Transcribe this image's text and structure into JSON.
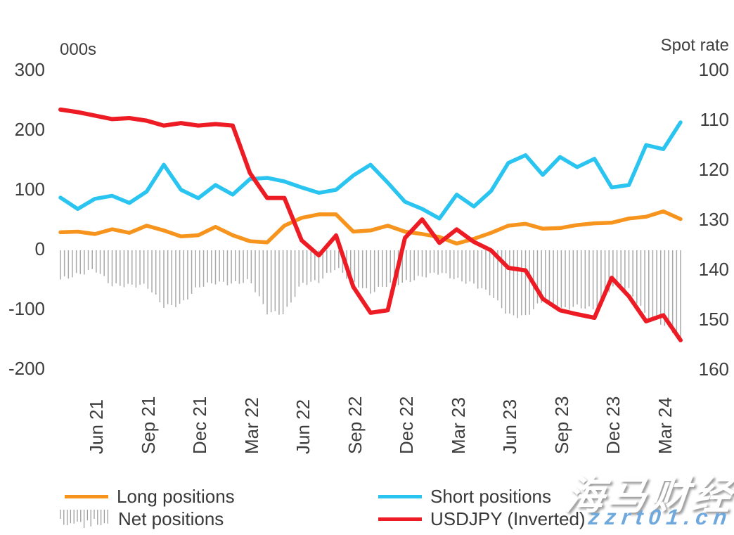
{
  "axes": {
    "left_unit_label": "000s",
    "right_unit_label": "Spot rate",
    "left_ticks": [
      300,
      200,
      100,
      0,
      -100,
      -200
    ],
    "right_ticks": [
      100,
      110,
      120,
      130,
      140,
      150,
      160
    ],
    "x_ticks": [
      {
        "label": "Jun 21",
        "month_index": 2
      },
      {
        "label": "Sep 21",
        "month_index": 5
      },
      {
        "label": "Dec 21",
        "month_index": 8
      },
      {
        "label": "Mar 22",
        "month_index": 11
      },
      {
        "label": "Jun 22",
        "month_index": 14
      },
      {
        "label": "Sep 22",
        "month_index": 17
      },
      {
        "label": "Dec 22",
        "month_index": 20
      },
      {
        "label": "Mar 23",
        "month_index": 23
      },
      {
        "label": "Jun 23",
        "month_index": 26
      },
      {
        "label": "Sep 23",
        "month_index": 29
      },
      {
        "label": "Dec 23",
        "month_index": 32
      },
      {
        "label": "Mar 24",
        "month_index": 35
      }
    ]
  },
  "legend": {
    "items": [
      {
        "label": "Long positions",
        "swatch": "line",
        "color": "#F7941D"
      },
      {
        "label": "Net positions",
        "swatch": "hatch",
        "color": "#A9A9A9"
      },
      {
        "label": "Short positions",
        "swatch": "line",
        "color": "#29C4F0"
      },
      {
        "label": "USDJPY (Inverted)",
        "swatch": "line",
        "color": "#ED1C24"
      }
    ]
  },
  "watermark": {
    "brand": "海马财经",
    "site": "zzrt01.cn",
    "site_color": "#6FA8DC"
  },
  "chart_data": {
    "type": "line+bar",
    "title": "",
    "xlabel": "",
    "ylabel_left": "000s",
    "ylabel_right": "Spot rate",
    "grid": false,
    "legend_position": "bottom",
    "left_axis_range": [
      -200,
      300
    ],
    "right_axis_range": [
      100,
      160
    ],
    "right_axis_inverted": true,
    "x": [
      "Apr 21",
      "May 21",
      "Jun 21",
      "Jul 21",
      "Aug 21",
      "Sep 21",
      "Oct 21",
      "Nov 21",
      "Dec 21",
      "Jan 22",
      "Feb 22",
      "Mar 22",
      "Apr 22",
      "May 22",
      "Jun 22",
      "Jul 22",
      "Aug 22",
      "Sep 22",
      "Oct 22",
      "Nov 22",
      "Dec 22",
      "Jan 23",
      "Feb 23",
      "Mar 23",
      "Apr 23",
      "May 23",
      "Jun 23",
      "Jul 23",
      "Aug 23",
      "Sep 23",
      "Oct 23",
      "Nov 23",
      "Dec 23",
      "Jan 24",
      "Feb 24",
      "Mar 24",
      "Apr 24"
    ],
    "series": [
      {
        "name": "Long positions",
        "type": "line",
        "axis": "left",
        "color": "#F7941D",
        "values": [
          29,
          30,
          26,
          34,
          28,
          40,
          32,
          22,
          24,
          38,
          24,
          14,
          12,
          40,
          53,
          59,
          59,
          30,
          32,
          40,
          30,
          26,
          21,
          10,
          18,
          28,
          40,
          43,
          35,
          36,
          41,
          44,
          45,
          52,
          55,
          64,
          51
        ]
      },
      {
        "name": "Short positions",
        "type": "line",
        "axis": "left",
        "color": "#29C4F0",
        "values": [
          87,
          68,
          85,
          90,
          78,
          97,
          142,
          100,
          86,
          108,
          92,
          118,
          120,
          114,
          104,
          95,
          100,
          124,
          142,
          112,
          80,
          68,
          52,
          92,
          72,
          98,
          145,
          158,
          125,
          155,
          138,
          152,
          104,
          108,
          175,
          168,
          213
        ]
      },
      {
        "name": "Net positions",
        "type": "bar",
        "axis": "left",
        "color": "#A9A9A9",
        "values": [
          -50,
          -42,
          -33,
          -60,
          -60,
          -60,
          -95,
          -92,
          -62,
          -55,
          -57,
          -52,
          -105,
          -107,
          -57,
          -53,
          -30,
          -55,
          -72,
          -58,
          -55,
          -45,
          -38,
          -50,
          -58,
          -75,
          -110,
          -112,
          -85,
          -100,
          -95,
          -100,
          -62,
          -68,
          -110,
          -125,
          -150
        ]
      },
      {
        "name": "USDJPY (Inverted)",
        "type": "line",
        "axis": "right",
        "color": "#ED1C24",
        "values": [
          108.3,
          108.8,
          109.5,
          110.2,
          110.0,
          110.5,
          111.5,
          111.0,
          111.5,
          111.2,
          111.5,
          121.0,
          126.0,
          126.0,
          134.5,
          137.5,
          133.5,
          143.8,
          149.0,
          148.5,
          134.0,
          130.3,
          135.0,
          132.3,
          134.8,
          136.5,
          140.0,
          140.5,
          146.2,
          148.5,
          149.3,
          150.0,
          142.0,
          145.7,
          150.7,
          149.5,
          154.5
        ]
      }
    ]
  }
}
